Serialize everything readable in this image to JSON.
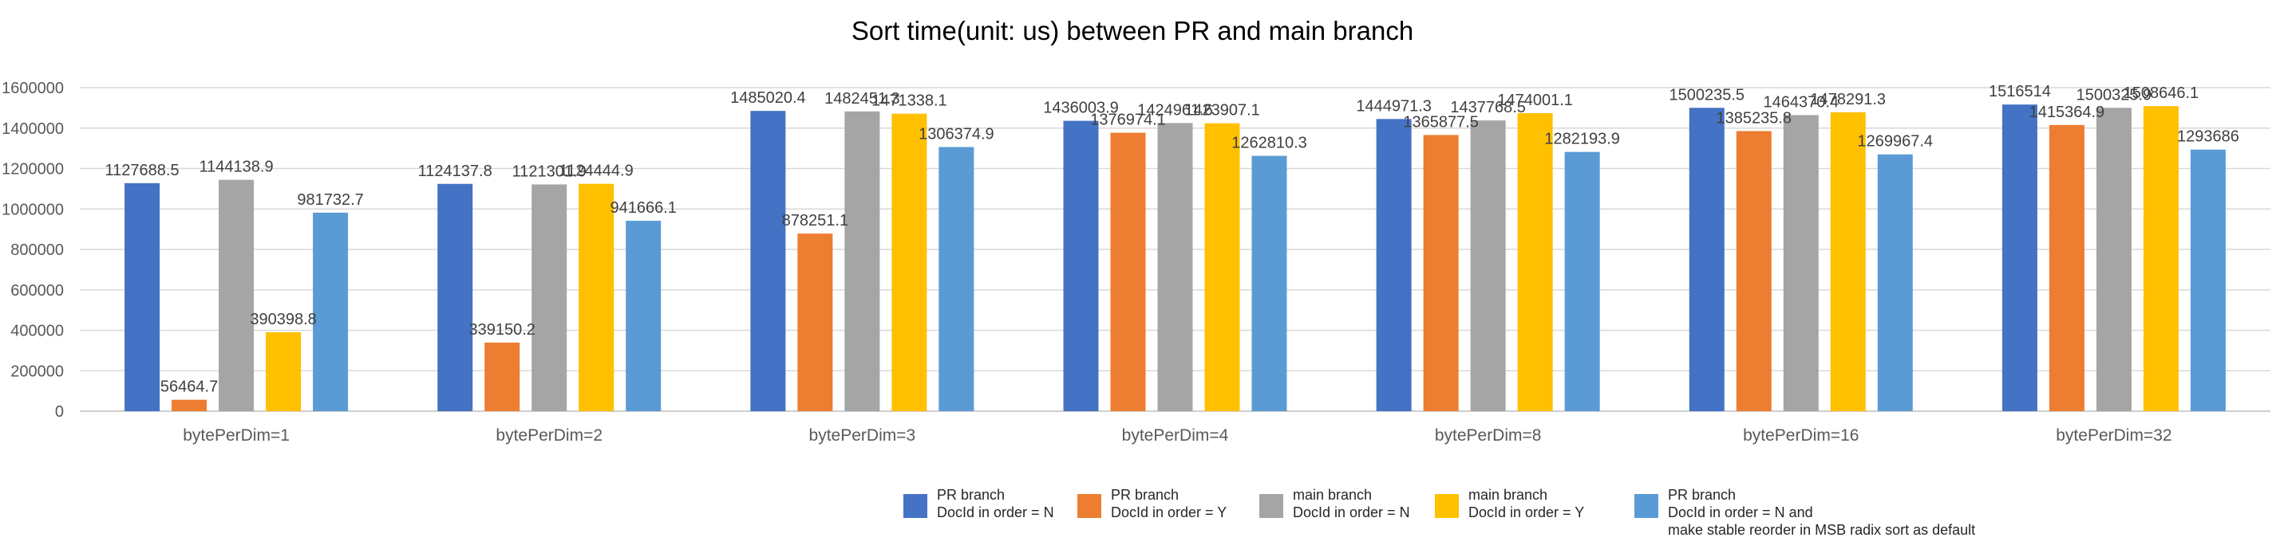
{
  "chart_data": {
    "type": "bar",
    "title": "Sort time(unit: us) between PR and main branch",
    "xlabel": "",
    "ylabel": "",
    "ylim": [
      0,
      1600000
    ],
    "yticks": [
      0,
      200000,
      400000,
      600000,
      800000,
      1000000,
      1200000,
      1400000,
      1600000
    ],
    "ytick_labels": [
      "0",
      "200000",
      "400000",
      "600000",
      "800000",
      "1000000",
      "1200000",
      "1400000",
      "1600000"
    ],
    "grid": true,
    "legend_position": "bottom",
    "categories": [
      "bytePerDim=1",
      "bytePerDim=2",
      "bytePerDim=3",
      "bytePerDim=4",
      "bytePerDim=8",
      "bytePerDim=16",
      "bytePerDim=32"
    ],
    "series": [
      {
        "name": "PR branch\nDocId in order = N",
        "color": "#4472C4",
        "values": [
          1127688.5,
          1124137.8,
          1485020.4,
          1436003.9,
          1444971.3,
          1500235.5,
          1516514
        ],
        "labels": [
          "1127688.5",
          "1124137.8",
          "1485020.4",
          "1436003.9",
          "1444971.3",
          "1500235.5",
          "1516514"
        ]
      },
      {
        "name": "PR branch\nDocId in order = Y",
        "color": "#ED7D31",
        "values": [
          56464.7,
          339150.2,
          878251.1,
          1376974.1,
          1365877.5,
          1385235.8,
          1415364.9
        ],
        "labels": [
          "56464.7",
          "339150.2",
          "878251.1",
          "1376974.1",
          "1365877.5",
          "1385235.8",
          "1415364.9"
        ]
      },
      {
        "name": "main branch\nDocId in order = N",
        "color": "#A5A5A5",
        "values": [
          1144138.9,
          1121301.9,
          1482451.3,
          1424961.6,
          1437768.5,
          1464370.4,
          1500325.9
        ],
        "labels": [
          "1144138.9",
          "1121301.9",
          "1482451.3",
          "1424961.6",
          "1437768.5",
          "1464370.4",
          "1500325.9"
        ]
      },
      {
        "name": "main branch\nDocId in order = Y",
        "color": "#FFC000",
        "values": [
          390398.8,
          1124444.9,
          1471338.1,
          1423907.1,
          1474001.1,
          1478291.3,
          1508646.1
        ],
        "labels": [
          "390398.8",
          "1124444.9",
          "1471338.1",
          "1423907.1",
          "1474001.1",
          "1478291.3",
          "1508646.1"
        ]
      },
      {
        "name": "PR branch\nDocId in order = N and\nmake stable reorder in MSB radix sort as default",
        "color": "#5B9BD5",
        "values": [
          981732.7,
          941666.1,
          1306374.9,
          1262810.3,
          1282193.9,
          1269967.4,
          1293686
        ],
        "labels": [
          "981732.7",
          "941666.1",
          "1306374.9",
          "1262810.3",
          "1282193.9",
          "1269967.4",
          "1293686"
        ]
      }
    ]
  }
}
